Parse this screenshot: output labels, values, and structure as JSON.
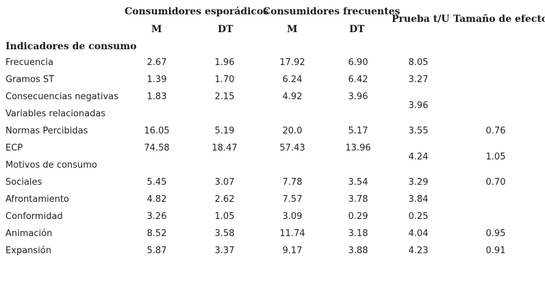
{
  "table": {
    "headers": {
      "group1": "Consumidores esporádicos",
      "group2": "Consumidores frecuentes",
      "m1": "M",
      "dt1": "DT",
      "m2": "M",
      "dt2": "DT",
      "test": "Prueba t/U",
      "effect": "Tamaño de efecto"
    },
    "section1": "Indicadores de consumo",
    "rows": [
      {
        "label": "Frecuencia",
        "m1": "2.67",
        "dt1": "1.96",
        "m2": "17.92",
        "dt2": "6.90",
        "test": "8.05",
        "effect": ""
      },
      {
        "label": "Gramos ST",
        "m1": "1.39",
        "dt1": "1.70",
        "m2": "6.24",
        "dt2": "6.42",
        "test": "3.27",
        "effect": ""
      },
      {
        "label": "Consecuencias negativas",
        "m1": "1.83",
        "dt1": "2.15",
        "m2": "4.92",
        "dt2": "3.96",
        "test": "",
        "effect": ""
      },
      {
        "label": "Variables relacionadas",
        "m1": "",
        "dt1": "",
        "m2": "",
        "dt2": "",
        "test": "3.96",
        "effect": ""
      },
      {
        "label": "Normas Percibidas",
        "m1": "16.05",
        "dt1": "5.19",
        "m2": "20.0",
        "dt2": "5.17",
        "test": "3.55",
        "effect": "0.76"
      },
      {
        "label": "ECP",
        "m1": "74.58",
        "dt1": "18.47",
        "m2": "57.43",
        "dt2": "13.96",
        "test": "",
        "effect": ""
      },
      {
        "label": "Motivos de consumo",
        "m1": "",
        "dt1": "",
        "m2": "",
        "dt2": "",
        "test": "4.24",
        "effect": "1.05"
      },
      {
        "label": "Sociales",
        "m1": "5.45",
        "dt1": "3.07",
        "m2": "7.78",
        "dt2": "3.54",
        "test": "3.29",
        "effect": "0.70"
      },
      {
        "label": "Afrontamiento",
        "m1": "4.82",
        "dt1": "2.62",
        "m2": "7.57",
        "dt2": "3.78",
        "test": "3.84",
        "effect": ""
      },
      {
        "label": "Conformidad",
        "m1": "3.26",
        "dt1": "1.05",
        "m2": "3.09",
        "dt2": "0.29",
        "test": "0.25",
        "effect": ""
      },
      {
        "label": "Animación",
        "m1": "8.52",
        "dt1": "3.58",
        "m2": "11.74",
        "dt2": "3.18",
        "test": "4.04",
        "effect": "0.95"
      },
      {
        "label": "Expansión",
        "m1": "5.87",
        "dt1": "3.37",
        "m2": "9.17",
        "dt2": "3.88",
        "test": "4.23",
        "effect": "0.91"
      }
    ]
  }
}
